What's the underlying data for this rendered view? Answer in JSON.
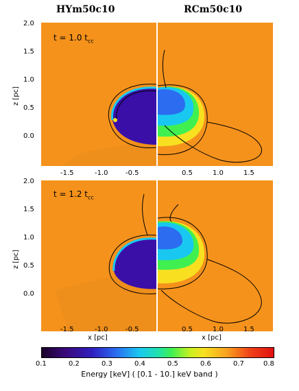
{
  "titles": {
    "left": "HYm50c10",
    "right": "RCm50c10"
  },
  "panels": {
    "top_time": "t = 1.0 t",
    "bottom_time": "t = 1.2 t",
    "time_sub": "cc"
  },
  "axes": {
    "y_label": "z [pc]",
    "x_label": "x [pc]",
    "y_ticks": [
      "2.0",
      "1.5",
      "1.0",
      "0.5",
      "0.0"
    ],
    "x_ticks_left": [
      "-1.5",
      "-1.0",
      "-0.5"
    ],
    "x_ticks_right": [
      "0.5",
      "1.0",
      "1.5"
    ]
  },
  "colorbar": {
    "ticks": [
      "0.1",
      "0.2",
      "0.3",
      "0.4",
      "0.5",
      "0.6",
      "0.7",
      "0.8"
    ],
    "label": "Energy [keV] ( [0.1 - 10.] keV band )"
  },
  "colors": {
    "background": "#f5921c",
    "cold": "#3a0fa8",
    "warm": "#19c8f0",
    "hot": "#f8e020"
  }
}
